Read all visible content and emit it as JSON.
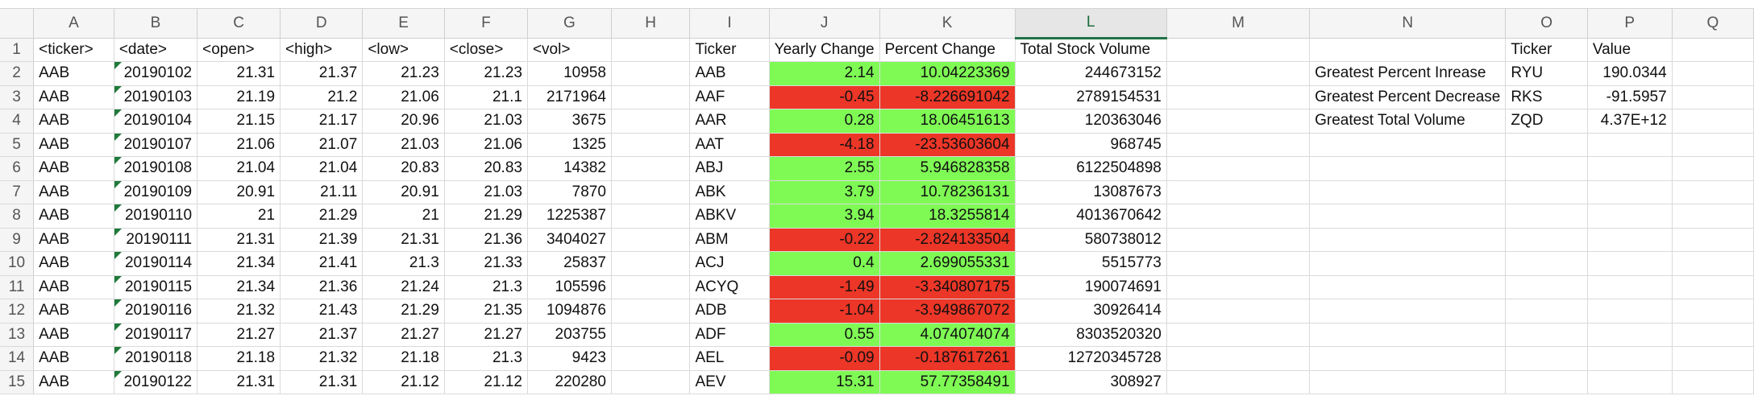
{
  "columns": [
    "A",
    "B",
    "C",
    "D",
    "E",
    "F",
    "G",
    "H",
    "I",
    "J",
    "K",
    "L",
    "M",
    "N",
    "O",
    "P",
    "Q"
  ],
  "rows": [
    {
      "n": "1",
      "cells": [
        "<ticker>",
        "<date>",
        "<open>",
        "<high>",
        "<low>",
        "<close>",
        "<vol>",
        "",
        "Ticker",
        "Yearly Change",
        "Percent Change",
        "Total Stock Volume",
        "",
        "",
        "Ticker",
        "Value",
        ""
      ]
    },
    {
      "n": "2",
      "cells": [
        "AAB",
        "20190102",
        "21.31",
        "21.37",
        "21.23",
        "21.23",
        "10958",
        "",
        "AAB",
        "2.14",
        "10.04223369",
        "244673152",
        "",
        "Greatest Percent Inrease",
        "RYU",
        "190.0344",
        ""
      ]
    },
    {
      "n": "3",
      "cells": [
        "AAB",
        "20190103",
        "21.19",
        "21.2",
        "21.06",
        "21.1",
        "2171964",
        "",
        "AAF",
        "-0.45",
        "-8.226691042",
        "2789154531",
        "",
        "Greatest Percent Decrease",
        "RKS",
        "-91.5957",
        ""
      ]
    },
    {
      "n": "4",
      "cells": [
        "AAB",
        "20190104",
        "21.15",
        "21.17",
        "20.96",
        "21.03",
        "3675",
        "",
        "AAR",
        "0.28",
        "18.06451613",
        "120363046",
        "",
        "Greatest Total Volume",
        "ZQD",
        "4.37E+12",
        ""
      ]
    },
    {
      "n": "5",
      "cells": [
        "AAB",
        "20190107",
        "21.06",
        "21.07",
        "21.03",
        "21.06",
        "1325",
        "",
        "AAT",
        "-4.18",
        "-23.53603604",
        "968745",
        "",
        "",
        "",
        "",
        ""
      ]
    },
    {
      "n": "6",
      "cells": [
        "AAB",
        "20190108",
        "21.04",
        "21.04",
        "20.83",
        "20.83",
        "14382",
        "",
        "ABJ",
        "2.55",
        "5.946828358",
        "6122504898",
        "",
        "",
        "",
        "",
        ""
      ]
    },
    {
      "n": "7",
      "cells": [
        "AAB",
        "20190109",
        "20.91",
        "21.11",
        "20.91",
        "21.03",
        "7870",
        "",
        "ABK",
        "3.79",
        "10.78236131",
        "13087673",
        "",
        "",
        "",
        "",
        ""
      ]
    },
    {
      "n": "8",
      "cells": [
        "AAB",
        "20190110",
        "21",
        "21.29",
        "21",
        "21.29",
        "1225387",
        "",
        "ABKV",
        "3.94",
        "18.3255814",
        "4013670642",
        "",
        "",
        "",
        "",
        ""
      ]
    },
    {
      "n": "9",
      "cells": [
        "AAB",
        "20190111",
        "21.31",
        "21.39",
        "21.31",
        "21.36",
        "3404027",
        "",
        "ABM",
        "-0.22",
        "-2.824133504",
        "580738012",
        "",
        "",
        "",
        "",
        ""
      ]
    },
    {
      "n": "10",
      "cells": [
        "AAB",
        "20190114",
        "21.34",
        "21.41",
        "21.3",
        "21.33",
        "25837",
        "",
        "ACJ",
        "0.4",
        "2.699055331",
        "5515773",
        "",
        "",
        "",
        "",
        ""
      ]
    },
    {
      "n": "11",
      "cells": [
        "AAB",
        "20190115",
        "21.34",
        "21.36",
        "21.24",
        "21.3",
        "105596",
        "",
        "ACYQ",
        "-1.49",
        "-3.340807175",
        "190074691",
        "",
        "",
        "",
        "",
        ""
      ]
    },
    {
      "n": "12",
      "cells": [
        "AAB",
        "20190116",
        "21.32",
        "21.43",
        "21.29",
        "21.35",
        "1094876",
        "",
        "ADB",
        "-1.04",
        "-3.949867072",
        "30926414",
        "",
        "",
        "",
        "",
        ""
      ]
    },
    {
      "n": "13",
      "cells": [
        "AAB",
        "20190117",
        "21.27",
        "21.37",
        "21.27",
        "21.27",
        "203755",
        "",
        "ADF",
        "0.55",
        "4.074074074",
        "8303520320",
        "",
        "",
        "",
        "",
        ""
      ]
    },
    {
      "n": "14",
      "cells": [
        "AAB",
        "20190118",
        "21.18",
        "21.32",
        "21.18",
        "21.3",
        "9423",
        "",
        "AEL",
        "-0.09",
        "-0.187617261",
        "12720345728",
        "",
        "",
        "",
        "",
        ""
      ]
    },
    {
      "n": "15",
      "cells": [
        "AAB",
        "20190122",
        "21.31",
        "21.31",
        "21.12",
        "21.12",
        "220280",
        "",
        "AEV",
        "15.31",
        "57.77358491",
        "308927",
        "",
        "",
        "",
        "",
        ""
      ]
    }
  ],
  "colors": {
    "positive": "#7ffa55",
    "negative": "#ec3627",
    "selected_header_accent": "#217346"
  },
  "selected_column": "L"
}
